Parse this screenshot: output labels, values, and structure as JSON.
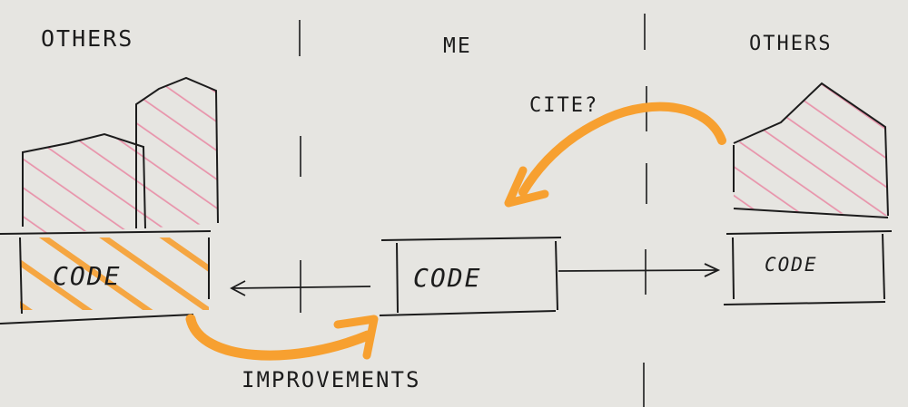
{
  "headers": {
    "left": "OTHERS",
    "center": "ME",
    "right": "OTHERS"
  },
  "boxes": {
    "left": "CODE",
    "center": "CODE",
    "right": "CODE"
  },
  "annotations": {
    "cite": "CITE?",
    "improvements": "IMPROVEMENTS"
  },
  "colors": {
    "paper": "#e6e5e1",
    "ink": "#1c1c1c",
    "highlight_orange": "#f7a030",
    "hatch_pink": "#e8799a"
  }
}
